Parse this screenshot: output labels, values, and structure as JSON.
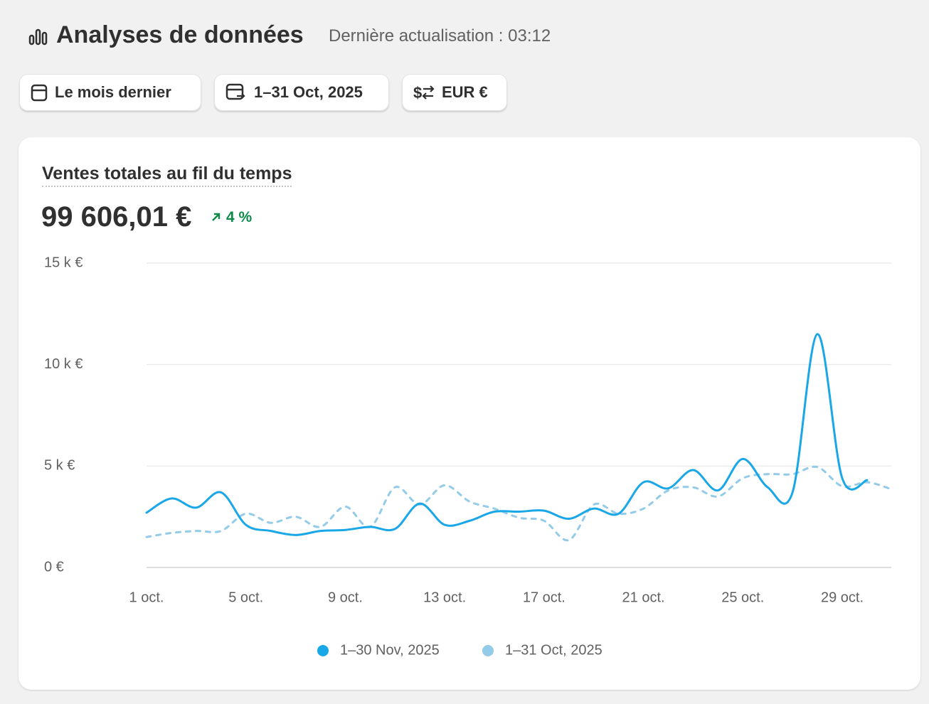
{
  "header": {
    "title": "Analyses de données",
    "subtitle": "Dernière actualisation : 03:12"
  },
  "buttons": [
    "Le mois dernier",
    "1–31 Oct, 2025",
    "EUR €"
  ],
  "card": {
    "title": "Ventes totales au fil du temps",
    "total": "99 606,01 €",
    "change": "4 %"
  },
  "chart_data": {
    "type": "line",
    "categories": [
      "1 oct.",
      null,
      null,
      null,
      "5 oct.",
      null,
      null,
      null,
      "9 oct.",
      null,
      null,
      null,
      "13 oct.",
      null,
      null,
      null,
      "17 oct.",
      null,
      null,
      null,
      "21 oct.",
      null,
      null,
      null,
      "25 oct.",
      null,
      null,
      null,
      "29 oct.",
      null,
      null
    ],
    "series": [
      {
        "name": "1–30 Nov, 2025",
        "color": "#1aa7e8",
        "dashed": false,
        "values": [
          2700,
          3400,
          2950,
          3700,
          2100,
          1800,
          1600,
          1800,
          1850,
          2000,
          1900,
          3150,
          2100,
          2300,
          2750,
          2750,
          2800,
          2400,
          2900,
          2650,
          4200,
          3900,
          4800,
          3800,
          5350,
          3950,
          3700,
          11500,
          4400,
          4300,
          null
        ]
      },
      {
        "name": "1–31 Oct, 2025",
        "color": "#93cbe8",
        "dashed": true,
        "values": [
          1500,
          1700,
          1800,
          1800,
          2650,
          2200,
          2500,
          2000,
          3000,
          2000,
          3950,
          3100,
          4050,
          3250,
          2900,
          2450,
          2300,
          1350,
          3100,
          2650,
          2900,
          3800,
          3950,
          3500,
          4400,
          4600,
          4600,
          4950,
          4000,
          4200,
          3850
        ]
      }
    ],
    "ylim": [
      0,
      15000
    ],
    "yticks": [
      {
        "value": 0,
        "label": "0 €"
      },
      {
        "value": 5000,
        "label": "5 k €"
      },
      {
        "value": 10000,
        "label": "10 k €"
      },
      {
        "value": 15000,
        "label": "15 k €"
      }
    ],
    "grid": true
  }
}
